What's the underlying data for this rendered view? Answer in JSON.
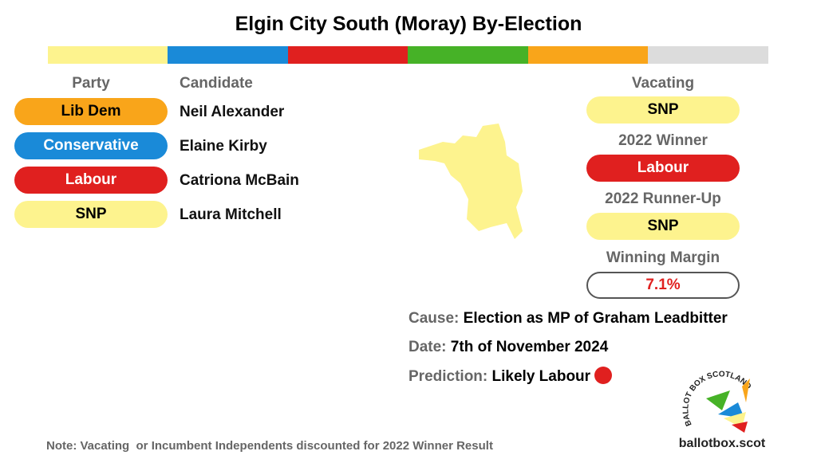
{
  "title": "Elgin City South (Moray) By-Election",
  "candidates": {
    "party_header": "Party",
    "candidate_header": "Candidate",
    "rows": [
      {
        "party": "Lib Dem",
        "candidate": "Neil Alexander"
      },
      {
        "party": "Conservative",
        "candidate": "Elaine Kirby"
      },
      {
        "party": "Labour",
        "candidate": "Catriona McBain"
      },
      {
        "party": "SNP",
        "candidate": "Laura Mitchell"
      }
    ]
  },
  "summary": {
    "vacating_label": "Vacating",
    "vacating": "SNP",
    "winner_label": "2022 Winner",
    "winner": "Labour",
    "runner_up_label": "2022 Runner-Up",
    "runner_up": "SNP",
    "margin_label": "Winning Margin",
    "margin": "7.1%"
  },
  "details": {
    "cause_label": "Cause:",
    "cause": "Election as MP of Graham Leadbitter",
    "date_label": "Date:",
    "date": "7th of November 2024",
    "prediction_label": "Prediction:",
    "prediction": "Likely Labour"
  },
  "note": "Note: Vacating  or Incumbent Independents discounted for 2022 Winner Result",
  "logo": {
    "arc": "BALLOT BOX SCOTLAND",
    "site": "ballotbox.scot"
  }
}
